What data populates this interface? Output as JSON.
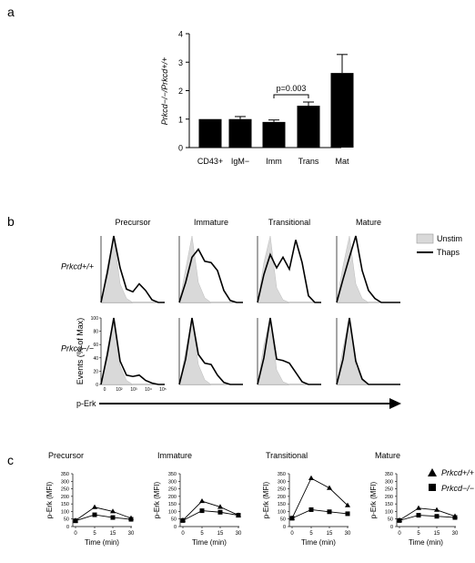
{
  "panel_a": {
    "letter": "a",
    "ylabel": "Prkcd−/−/Prkcd+/+",
    "chart_data": {
      "type": "bar",
      "categories": [
        "CD43+",
        "IgM−",
        "Imm",
        "Trans",
        "Mat"
      ],
      "values": [
        1.0,
        1.0,
        0.9,
        1.47,
        2.62
      ],
      "errors": [
        0,
        0.09,
        0.07,
        0.13,
        0.65
      ],
      "ylim": [
        0,
        4
      ],
      "yticks": [
        "0",
        "1",
        "2",
        "3",
        "4"
      ],
      "annotation": "p=0.003"
    }
  },
  "panel_b": {
    "letter": "b",
    "columns": [
      "Precursor",
      "Immature",
      "Transitional",
      "Mature"
    ],
    "rows": [
      "Prkcd+/+",
      "Prkcd−/−"
    ],
    "legend": [
      "Unstim",
      "Thaps"
    ],
    "ylabel": "Events (% of Max)",
    "yticks": [
      "0",
      "20",
      "40",
      "60",
      "80",
      "100"
    ],
    "xticks": [
      "0",
      "10²",
      "10³",
      "10⁴",
      "10⁵"
    ],
    "xlabel": "p-Erk",
    "chart_data": {
      "type": "area",
      "x": [
        0.0,
        0.1,
        0.2,
        0.3,
        0.4,
        0.5,
        0.6,
        0.7,
        0.8,
        0.9,
        1.0
      ],
      "series": [
        {
          "row": "Prkcd+/+",
          "column": "Precursor",
          "unstim": [
            0,
            55,
            100,
            28,
            6,
            0,
            0,
            0,
            0,
            0,
            0
          ],
          "thaps": [
            0,
            45,
            100,
            52,
            20,
            16,
            28,
            18,
            4,
            0,
            0
          ]
        },
        {
          "row": "Prkcd+/+",
          "column": "Immature",
          "unstim": [
            0,
            50,
            100,
            30,
            7,
            0,
            0,
            0,
            0,
            0,
            0
          ],
          "thaps": [
            0,
            30,
            68,
            80,
            62,
            60,
            48,
            18,
            3,
            0,
            0
          ]
        },
        {
          "row": "Prkcd+/+",
          "column": "Transitional",
          "unstim": [
            0,
            60,
            100,
            22,
            4,
            0,
            0,
            0,
            0,
            0,
            0
          ],
          "thaps": [
            0,
            42,
            72,
            52,
            68,
            50,
            94,
            60,
            10,
            0,
            0
          ]
        },
        {
          "row": "Prkcd+/+",
          "column": "Mature",
          "unstim": [
            0,
            55,
            100,
            28,
            6,
            0,
            0,
            0,
            0,
            0,
            0
          ],
          "thaps": [
            0,
            35,
            68,
            100,
            48,
            18,
            6,
            0,
            0,
            0,
            0
          ]
        },
        {
          "row": "Prkcd−/−",
          "column": "Precursor",
          "unstim": [
            0,
            55,
            100,
            28,
            6,
            0,
            0,
            0,
            0,
            0,
            0
          ],
          "thaps": [
            0,
            45,
            100,
            35,
            14,
            12,
            14,
            6,
            2,
            0,
            0
          ]
        },
        {
          "row": "Prkcd−/−",
          "column": "Immature",
          "unstim": [
            0,
            50,
            100,
            30,
            7,
            0,
            0,
            0,
            0,
            0,
            0
          ],
          "thaps": [
            0,
            38,
            100,
            45,
            32,
            30,
            14,
            3,
            0,
            0,
            0
          ]
        },
        {
          "row": "Prkcd−/−",
          "column": "Transitional",
          "unstim": [
            0,
            60,
            100,
            22,
            4,
            0,
            0,
            0,
            0,
            0,
            0
          ],
          "thaps": [
            0,
            40,
            100,
            38,
            36,
            32,
            18,
            4,
            0,
            0,
            0
          ]
        },
        {
          "row": "Prkcd−/−",
          "column": "Mature",
          "unstim": [
            0,
            55,
            100,
            28,
            6,
            0,
            0,
            0,
            0,
            0,
            0
          ],
          "thaps": [
            0,
            38,
            100,
            35,
            8,
            0,
            0,
            0,
            0,
            0,
            0
          ]
        }
      ]
    }
  },
  "panel_c": {
    "letter": "c",
    "titles": [
      "Precursor",
      "Immature",
      "Transitional",
      "Mature"
    ],
    "ylabel": "p-Erk (MFI)",
    "xlabel": "Time (min)",
    "yticks": [
      "0",
      "50",
      "100",
      "150",
      "200",
      "250",
      "300",
      "350"
    ],
    "xticks": [
      "0",
      "5",
      "15",
      "30"
    ],
    "legend": [
      "Prkcd+/+",
      "Prkcd−/−"
    ],
    "chart_data": [
      {
        "type": "line",
        "title": "Precursor",
        "x": [
          0,
          5,
          15,
          30
        ],
        "series": [
          {
            "name": "Prkcd+/+",
            "values": [
              40,
              128,
              100,
              55
            ]
          },
          {
            "name": "Prkcd−/−",
            "values": [
              38,
              78,
              60,
              48
            ]
          }
        ],
        "ylim": [
          0,
          350
        ]
      },
      {
        "type": "line",
        "title": "Immature",
        "x": [
          0,
          5,
          15,
          30
        ],
        "series": [
          {
            "name": "Prkcd+/+",
            "values": [
              42,
              168,
              130,
              75
            ]
          },
          {
            "name": "Prkcd−/−",
            "values": [
              40,
              105,
              95,
              75
            ]
          }
        ],
        "ylim": [
          0,
          350
        ]
      },
      {
        "type": "line",
        "title": "Transitional",
        "x": [
          0,
          5,
          15,
          30
        ],
        "series": [
          {
            "name": "Prkcd+/+",
            "values": [
              55,
              320,
              255,
              140
            ]
          },
          {
            "name": "Prkcd−/−",
            "values": [
              55,
              112,
              98,
              85
            ]
          }
        ],
        "ylim": [
          0,
          350
        ]
      },
      {
        "type": "line",
        "title": "Mature",
        "x": [
          0,
          5,
          15,
          30
        ],
        "series": [
          {
            "name": "Prkcd+/+",
            "values": [
              42,
              122,
              110,
              68
            ]
          },
          {
            "name": "Prkcd−/−",
            "values": [
              40,
              75,
              68,
              60
            ]
          }
        ],
        "ylim": [
          0,
          350
        ]
      }
    ]
  }
}
